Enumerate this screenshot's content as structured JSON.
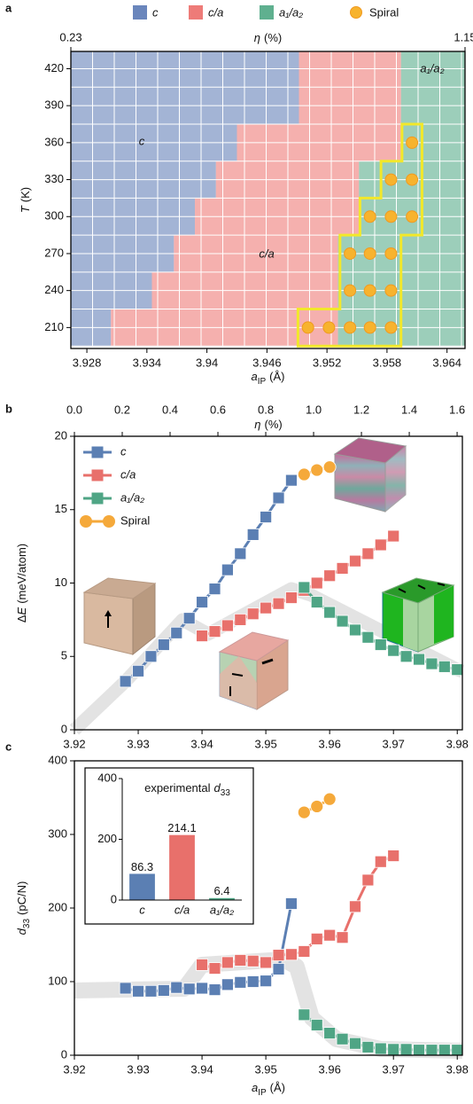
{
  "chart_data": [
    {
      "type": "phase",
      "panel": "a",
      "x_label": [
        "a",
        "IP",
        "(Å)"
      ],
      "y_label": [
        "T",
        "(K)"
      ],
      "x2_label": [
        "η",
        "(%)"
      ],
      "xlim": [
        3.9264,
        3.9658
      ],
      "xticks": [
        3.928,
        3.934,
        3.94,
        3.946,
        3.952,
        3.958,
        3.964
      ],
      "x2lim": [
        0.23,
        1.15
      ],
      "x2ticks": [
        0.23,
        1.15
      ],
      "ylim": [
        193,
        434
      ],
      "yticks": [
        210,
        240,
        270,
        300,
        330,
        360,
        390,
        420
      ],
      "rows": [
        210,
        240,
        270,
        300,
        330,
        360,
        390,
        420
      ],
      "boundaries": {
        "c_to_ca": [
          3.9304,
          3.9345,
          3.9367,
          3.9388,
          3.9409,
          3.943,
          3.9492,
          3.9492
        ],
        "ca_to_a1a2": [
          3.9531,
          3.9531,
          3.9531,
          3.9552,
          3.9552,
          3.9594,
          3.9594,
          3.9594
        ]
      },
      "series": [
        {
          "name": "c",
          "color": "#6a86bc"
        },
        {
          "name": "c/a",
          "color": "#ee7b78"
        },
        {
          "name": "a₁/a₂",
          "color": "#5fb08f"
        },
        {
          "name": "Spiral",
          "color": "#f7b32e",
          "x": [
            3.9605,
            3.9584,
            3.9605,
            3.9563,
            3.9584,
            3.9605,
            3.9543,
            3.9563,
            3.9584,
            3.9543,
            3.9563,
            3.9584,
            3.9501,
            3.9522,
            3.9543,
            3.9563,
            3.9584
          ],
          "y": [
            360,
            330,
            330,
            300,
            300,
            300,
            270,
            270,
            270,
            240,
            240,
            240,
            210,
            210,
            210,
            210,
            210
          ]
        }
      ],
      "annotations": [
        "c",
        "c/a",
        "a₁/a₂"
      ]
    },
    {
      "type": "line",
      "panel": "b",
      "y_label": [
        "Δ",
        "E",
        "(meV/atom)"
      ],
      "x2_label": [
        "η",
        "(%)"
      ],
      "xlim": [
        3.92,
        3.9808
      ],
      "xticks": [
        3.92,
        3.93,
        3.94,
        3.95,
        3.96,
        3.97,
        3.98
      ],
      "x2lim": [
        0,
        1.622
      ],
      "x2ticks": [
        {
          "value": 0,
          "label": "0.0"
        },
        0.2,
        0.4,
        0.6,
        0.8,
        {
          "value": 1,
          "label": "1.0"
        },
        1.2,
        1.4,
        1.6
      ],
      "ylim": [
        0,
        20
      ],
      "yticks": [
        0,
        5,
        10,
        15,
        20
      ],
      "legend": "upper left",
      "series": [
        {
          "name": "c",
          "color": "#5b7fb3",
          "marker": "square",
          "x": [
            3.928,
            3.93,
            3.932,
            3.934,
            3.936,
            3.938,
            3.94,
            3.942,
            3.944,
            3.946,
            3.948,
            3.95,
            3.952,
            3.954
          ],
          "values": [
            3.3,
            4.0,
            5.0,
            5.8,
            6.6,
            7.6,
            8.7,
            9.6,
            10.9,
            12.0,
            13.3,
            14.5,
            15.8,
            17.0
          ]
        },
        {
          "name": "c/a",
          "color": "#e8706b",
          "marker": "square",
          "x": [
            3.94,
            3.942,
            3.944,
            3.946,
            3.948,
            3.95,
            3.952,
            3.954,
            3.956,
            3.958,
            3.96,
            3.962,
            3.964,
            3.966,
            3.968,
            3.97
          ],
          "values": [
            6.4,
            6.7,
            7.1,
            7.5,
            7.9,
            8.3,
            8.6,
            9.0,
            9.5,
            10.0,
            10.5,
            11.0,
            11.5,
            12.0,
            12.6,
            13.2
          ]
        },
        {
          "name": "a₁/a₂",
          "color": "#4fa585",
          "marker": "square",
          "x": [
            3.956,
            3.958,
            3.96,
            3.962,
            3.964,
            3.966,
            3.968,
            3.97,
            3.972,
            3.974,
            3.976,
            3.978,
            3.98
          ],
          "values": [
            9.7,
            8.7,
            8.0,
            7.4,
            6.8,
            6.3,
            5.8,
            5.4,
            5.0,
            4.8,
            4.5,
            4.3,
            4.1
          ]
        },
        {
          "name": "Spiral",
          "color": "#f5a93a",
          "marker": "circle",
          "x": [
            3.956,
            3.958,
            3.96
          ],
          "values": [
            17.4,
            17.7,
            17.9
          ]
        }
      ]
    },
    {
      "type": "line",
      "panel": "c",
      "x_label": [
        "a",
        "IP",
        "(Å)"
      ],
      "y_label": [
        "d",
        "33",
        "(pC/N)"
      ],
      "xlim": [
        3.92,
        3.9808
      ],
      "xticks": [
        3.92,
        3.93,
        3.94,
        3.95,
        3.96,
        3.97,
        3.98
      ],
      "ylim": [
        0,
        400
      ],
      "yticks": [
        0,
        100,
        200,
        300,
        400
      ],
      "series": [
        {
          "color": "#5b7fb3",
          "marker": "square",
          "x": [
            3.928,
            3.93,
            3.932,
            3.934,
            3.936,
            3.938,
            3.94,
            3.942,
            3.944,
            3.946,
            3.948,
            3.95,
            3.952,
            3.954
          ],
          "values": [
            91,
            87,
            87,
            88,
            92,
            90,
            91,
            89,
            96,
            99,
            100,
            101,
            117,
            206
          ]
        },
        {
          "color": "#e8706b",
          "marker": "square",
          "x": [
            3.94,
            3.942,
            3.944,
            3.946,
            3.948,
            3.95,
            3.952,
            3.954,
            3.956,
            3.958,
            3.96,
            3.962,
            3.964,
            3.966,
            3.968,
            3.97
          ],
          "values": [
            123,
            118,
            126,
            129,
            128,
            126,
            136,
            137,
            141,
            158,
            163,
            160,
            202,
            238,
            263,
            271
          ]
        },
        {
          "color": "#4fa585",
          "marker": "square",
          "x": [
            3.956,
            3.958,
            3.96,
            3.962,
            3.964,
            3.966,
            3.968,
            3.97,
            3.972,
            3.974,
            3.976,
            3.978,
            3.98
          ],
          "values": [
            55,
            41,
            30,
            22,
            16,
            11,
            9,
            8,
            8,
            7,
            7,
            7,
            7
          ]
        },
        {
          "color": "#f5a93a",
          "marker": "circle",
          "x": [
            3.956,
            3.958,
            3.96
          ],
          "values": [
            330,
            338,
            348
          ]
        }
      ]
    },
    {
      "type": "bar",
      "title": [
        "experimental",
        "d",
        "33"
      ],
      "categories": [
        "c",
        "c/a",
        "a₁/a₂"
      ],
      "values": [
        86.3,
        214.1,
        6.4
      ],
      "colors": [
        "#5b7fb3",
        "#e8706b",
        "#4fa585"
      ],
      "ylim": [
        0,
        400
      ],
      "yticks": [
        0,
        200,
        400
      ]
    }
  ]
}
